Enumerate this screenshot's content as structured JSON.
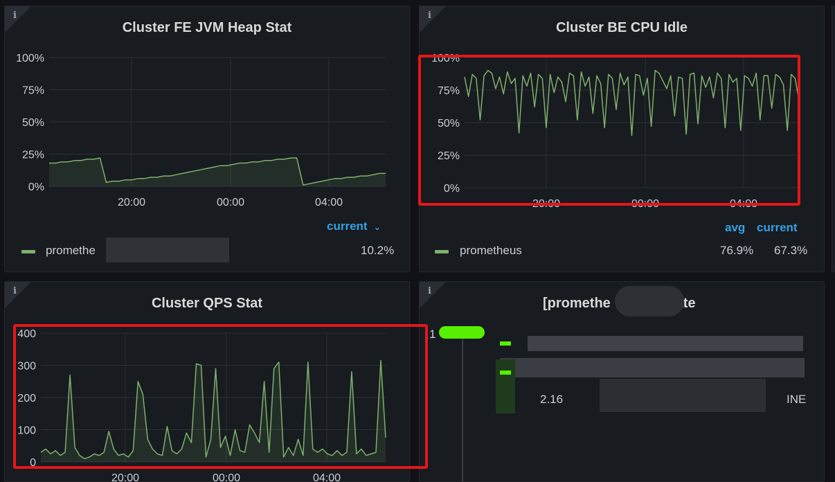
{
  "panels": {
    "heap": {
      "info_icon": "i",
      "title": "Cluster FE JVM Heap Stat",
      "legend_header": "current",
      "legend_series": "promethe",
      "legend_current": "10.2%"
    },
    "cpu": {
      "info_icon": "i",
      "title": "Cluster BE CPU Idle",
      "legend_header_avg": "avg",
      "legend_header_current": "current",
      "legend_series": "prometheus",
      "legend_avg": "76.9%",
      "legend_current": "67.3%"
    },
    "qps": {
      "info_icon": "i",
      "title": "Cluster QPS Stat"
    },
    "state": {
      "info_icon": "i",
      "title_left": "[promethe",
      "title_right": "tate",
      "row_index": "1",
      "row_value_prefix": "2.16",
      "row_value_suffix": "INE"
    }
  },
  "chart_data": [
    {
      "type": "area",
      "title": "Cluster FE JVM Heap Stat",
      "ylim": [
        0,
        100
      ],
      "yticks": [
        "0%",
        "25%",
        "50%",
        "75%",
        "100%"
      ],
      "xticks": [
        "20:00",
        "00:00",
        "04:00"
      ],
      "grid": true,
      "legend": "bottom-left",
      "series": [
        {
          "name": "promethe",
          "color": "#7eb26d",
          "values": [
            18,
            18,
            19,
            19,
            20,
            20,
            21,
            21,
            22,
            3,
            4,
            4,
            5,
            5,
            6,
            6,
            7,
            7,
            8,
            8,
            9,
            10,
            11,
            12,
            13,
            14,
            15,
            16,
            16,
            17,
            18,
            18,
            19,
            19,
            20,
            20,
            21,
            21,
            22,
            22,
            1,
            2,
            3,
            4,
            5,
            6,
            6,
            7,
            7,
            8,
            8,
            9,
            10,
            10
          ]
        }
      ]
    },
    {
      "type": "line",
      "title": "Cluster BE CPU Idle",
      "ylim": [
        0,
        100
      ],
      "yticks": [
        "0%",
        "25%",
        "50%",
        "75%",
        "100%"
      ],
      "xticks": [
        "20:00",
        "00:00",
        "04:00"
      ],
      "grid": true,
      "legend": "bottom-left",
      "series": [
        {
          "name": "prometheus",
          "color": "#7eb26d",
          "values": [
            85,
            70,
            87,
            84,
            52,
            86,
            90,
            88,
            76,
            85,
            72,
            89,
            80,
            84,
            42,
            86,
            78,
            88,
            62,
            87,
            84,
            46,
            87,
            73,
            85,
            81,
            66,
            88,
            86,
            52,
            89,
            78,
            85,
            57,
            86,
            80,
            46,
            87,
            84,
            60,
            88,
            79,
            85,
            40,
            87,
            86,
            71,
            84,
            47,
            90,
            88,
            82,
            76,
            86,
            55,
            85,
            84,
            41,
            87,
            88,
            49,
            86,
            77,
            85,
            69,
            88,
            84,
            46,
            87,
            81,
            84,
            44,
            86,
            84,
            78,
            88,
            52,
            86,
            86,
            61,
            87,
            85,
            79,
            44,
            87,
            84,
            67
          ]
        }
      ]
    },
    {
      "type": "area",
      "title": "Cluster QPS Stat",
      "ylim": [
        0,
        400
      ],
      "yticks": [
        "0",
        "100",
        "200",
        "300",
        "400"
      ],
      "xticks": [
        "20:00",
        "00:00",
        "04:00"
      ],
      "grid": true,
      "series": [
        {
          "color": "#7eb26d",
          "values": [
            30,
            40,
            25,
            35,
            20,
            30,
            270,
            45,
            20,
            10,
            15,
            25,
            20,
            30,
            95,
            40,
            20,
            25,
            15,
            35,
            250,
            210,
            70,
            40,
            25,
            20,
            110,
            35,
            25,
            40,
            90,
            60,
            305,
            300,
            15,
            70,
            290,
            45,
            80,
            20,
            100,
            35,
            30,
            115,
            90,
            60,
            250,
            30,
            290,
            310,
            15,
            45,
            20,
            70,
            20,
            310,
            40,
            30,
            40,
            25,
            20,
            35,
            20,
            30,
            280,
            25,
            40,
            20,
            25,
            30,
            315,
            75
          ]
        }
      ]
    }
  ]
}
